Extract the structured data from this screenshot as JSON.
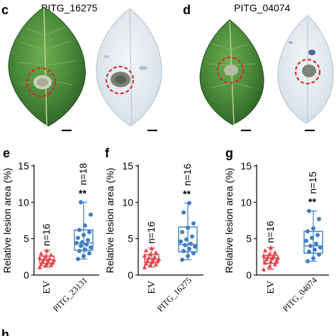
{
  "photo_panels": [
    {
      "label": "c",
      "gene": "PITG_16275"
    },
    {
      "label": "d",
      "gene": "PITG_04074"
    }
  ],
  "colors": {
    "ev": "#e8434b",
    "effector": "#3f7fc1",
    "circle": "#e02020",
    "leaf_green": "#3f7a34",
    "leaf_stained": "#dfe7ee"
  },
  "chart_data": [
    {
      "panel": "e",
      "type": "box",
      "ylabel": "Relative lesion area (%)",
      "ylim": [
        0,
        15
      ],
      "yticks": [
        0,
        5,
        10,
        15
      ],
      "categories": [
        "EV",
        "PITG_23131"
      ],
      "series": [
        {
          "name": "EV",
          "n_label": "n=16",
          "sig": "",
          "box": {
            "min": 1.1,
            "q1": 1.6,
            "median": 2.1,
            "q3": 2.6,
            "max": 3.4
          },
          "points": [
            1.1,
            1.3,
            1.4,
            1.5,
            1.6,
            1.7,
            1.9,
            2.0,
            2.1,
            2.2,
            2.3,
            2.4,
            2.6,
            2.8,
            3.0,
            3.4
          ]
        },
        {
          "name": "PITG_23131",
          "n_label": "n=18",
          "sig": "**",
          "box": {
            "min": 2.2,
            "q1": 3.4,
            "median": 4.4,
            "q3": 6.2,
            "max": 10.0
          },
          "points": [
            2.2,
            2.6,
            3.0,
            3.3,
            3.5,
            3.8,
            4.0,
            4.2,
            4.4,
            4.5,
            4.8,
            5.1,
            5.5,
            5.9,
            6.2,
            6.8,
            8.3,
            10.0
          ]
        }
      ]
    },
    {
      "panel": "f",
      "type": "box",
      "ylabel": "Relative lesion area (%)",
      "ylim": [
        0,
        15
      ],
      "yticks": [
        0,
        5,
        10,
        15
      ],
      "categories": [
        "EV",
        "PITG_16275"
      ],
      "series": [
        {
          "name": "EV",
          "n_label": "n=16",
          "sig": "",
          "box": {
            "min": 1.1,
            "q1": 1.7,
            "median": 2.2,
            "q3": 2.8,
            "max": 3.7
          },
          "points": [
            1.1,
            1.4,
            1.5,
            1.6,
            1.8,
            1.9,
            2.0,
            2.1,
            2.2,
            2.4,
            2.5,
            2.7,
            2.9,
            3.1,
            3.4,
            3.7
          ]
        },
        {
          "name": "PITG_16275",
          "n_label": "n=16",
          "sig": "**",
          "box": {
            "min": 2.1,
            "q1": 3.2,
            "median": 4.2,
            "q3": 6.6,
            "max": 9.9
          },
          "points": [
            2.1,
            2.6,
            3.0,
            3.3,
            3.6,
            3.9,
            4.1,
            4.3,
            4.6,
            4.9,
            5.3,
            5.9,
            6.5,
            7.1,
            8.6,
            9.9
          ]
        }
      ]
    },
    {
      "panel": "g",
      "type": "box",
      "ylabel": "Relative lesion area (%)",
      "ylim": [
        0,
        15
      ],
      "yticks": [
        0,
        5,
        10,
        15
      ],
      "categories": [
        "EV",
        "PITG_04074"
      ],
      "series": [
        {
          "name": "EV",
          "n_label": "n=16",
          "sig": "",
          "box": {
            "min": 0.8,
            "q1": 1.6,
            "median": 2.3,
            "q3": 2.7,
            "max": 3.8
          },
          "points": [
            0.8,
            1.2,
            1.5,
            1.7,
            1.9,
            2.0,
            2.2,
            2.3,
            2.4,
            2.5,
            2.6,
            2.7,
            2.9,
            3.1,
            3.4,
            3.8
          ]
        },
        {
          "name": "PITG_04074",
          "n_label": "n=15",
          "sig": "**",
          "box": {
            "min": 1.9,
            "q1": 3.0,
            "median": 4.0,
            "q3": 6.0,
            "max": 8.8
          },
          "points": [
            1.9,
            2.3,
            2.8,
            3.2,
            3.5,
            3.8,
            4.0,
            4.3,
            4.7,
            5.1,
            5.5,
            6.0,
            6.4,
            7.7,
            8.8
          ]
        }
      ]
    }
  ],
  "next_panel_label": "h"
}
